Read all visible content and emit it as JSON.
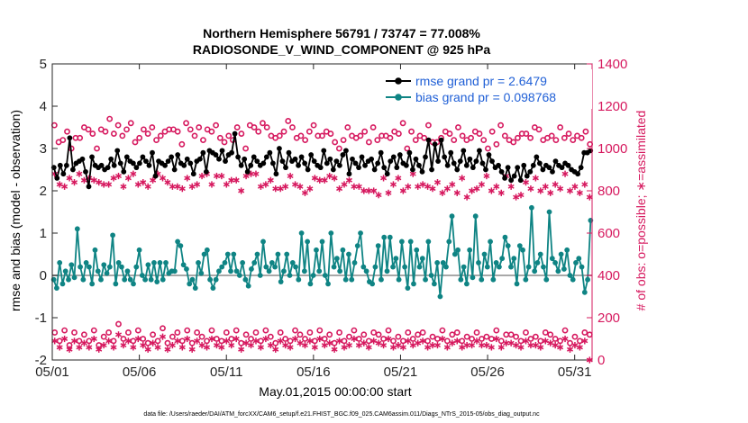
{
  "chart_data": {
    "type": "line",
    "title": "Northern Hemisphere 56791 / 73747 = 77.008%",
    "subtitle": "RADIOSONDE_V_WIND_COMPONENT @ 925 hPa",
    "xlabel": "May.01,2015 00:00:00 start",
    "ylabel": "rmse and bias (model - observation)",
    "y2label": "# of obs: o=possible; ∗=assimilated",
    "footnote": "data file: /Users/raeder/DAI/ATM_forcXX/CAM6_setup/f.e21.FHIST_BGC.f09_025.CAM6assim.011/Diags_NTrS_2015-05/obs_diag_output.nc",
    "x_range": [
      1,
      32
    ],
    "x_ticks": [
      1,
      6,
      11,
      16,
      21,
      26,
      31
    ],
    "x_tick_labels": [
      "05/01",
      "05/06",
      "05/11",
      "05/16",
      "05/21",
      "05/26",
      "05/31"
    ],
    "ylim": [
      -2,
      5
    ],
    "y_ticks": [
      -2,
      -1,
      0,
      1,
      2,
      3,
      4,
      5
    ],
    "y_tick_labels": [
      "-2",
      "-1",
      "0",
      "1",
      "2",
      "3",
      "4",
      "5"
    ],
    "y2lim": [
      0,
      1400
    ],
    "y2_ticks": [
      0,
      200,
      400,
      600,
      800,
      1000,
      1200,
      1400
    ],
    "y2_tick_labels": [
      "0",
      "200",
      "400",
      "600",
      "800",
      "1000",
      "1200",
      "1400"
    ],
    "legend_position": "top-right",
    "colors": {
      "rmse": "#000000",
      "bias": "#0f8484",
      "obs": "#d6185e",
      "zero_line": "#a8a8a8",
      "legend_text": "#1f5fd6"
    },
    "series": [
      {
        "name": "rmse grand pr = 2.6479",
        "axis": "left",
        "values": [
          2.55,
          2.3,
          2.6,
          2.4,
          2.6,
          3.25,
          2.5,
          2.65,
          2.7,
          2.75,
          2.45,
          2.1,
          2.8,
          2.6,
          2.55,
          2.6,
          2.5,
          2.55,
          2.75,
          2.6,
          2.95,
          2.65,
          2.45,
          2.8,
          2.7,
          2.65,
          2.55,
          2.65,
          2.8,
          2.7,
          2.6,
          2.9,
          2.35,
          2.7,
          2.65,
          2.6,
          2.7,
          2.8,
          2.5,
          2.85,
          2.65,
          2.6,
          2.75,
          2.65,
          2.4,
          2.7,
          2.75,
          2.9,
          2.45,
          2.95,
          2.9,
          2.85,
          2.75,
          2.95,
          2.7,
          2.85,
          2.9,
          3.35,
          2.8,
          2.6,
          2.75,
          2.45,
          2.6,
          2.8,
          2.7,
          2.6,
          2.65,
          2.8,
          2.9,
          2.65,
          2.4,
          3.0,
          2.7,
          2.55,
          2.9,
          2.7,
          2.75,
          2.6,
          2.8,
          2.65,
          2.5,
          2.85,
          2.7,
          2.6,
          2.55,
          2.95,
          2.65,
          2.75,
          2.5,
          2.7,
          2.6,
          2.85,
          2.95,
          2.4,
          2.75,
          2.65,
          2.55,
          2.8,
          2.6,
          2.7,
          2.75,
          2.5,
          2.65,
          2.9,
          2.55,
          2.4,
          2.7,
          2.8,
          2.55,
          2.85,
          2.65,
          2.6,
          2.9,
          2.5,
          2.75,
          2.6,
          2.45,
          2.8,
          3.2,
          2.5,
          3.1,
          2.7,
          3.2,
          2.8,
          2.6,
          2.9,
          2.65,
          2.5,
          2.7,
          2.95,
          2.6,
          2.75,
          2.55,
          2.7,
          2.95,
          2.65,
          2.5,
          2.85,
          2.7,
          2.55,
          2.6,
          2.45,
          2.3,
          2.55,
          2.25,
          2.35,
          2.55,
          2.25,
          2.6,
          2.35,
          2.45,
          2.6,
          2.8,
          2.65,
          2.5,
          2.6,
          2.55,
          2.45,
          2.7,
          2.6,
          2.55,
          2.65,
          2.6,
          2.5,
          2.45,
          2.4,
          2.55,
          2.9,
          2.9,
          2.95
        ]
      },
      {
        "name": "bias grand pr = 0.098768",
        "axis": "left",
        "values": [
          -0.1,
          -0.3,
          0.3,
          -0.2,
          0.1,
          -0.1,
          0.25,
          -0.05,
          1.1,
          0.2,
          -0.1,
          0.3,
          0.2,
          -0.2,
          0.6,
          0.1,
          -0.1,
          0.25,
          0.05,
          0.2,
          0.95,
          -0.2,
          0.3,
          0.2,
          -0.1,
          0.1,
          -0.1,
          -0.2,
          0.2,
          0.6,
          0.0,
          -0.1,
          0.25,
          -0.1,
          0.3,
          -0.15,
          0.3,
          -0.1,
          0.3,
          0.05,
          0.1,
          0.1,
          0.8,
          0.7,
          0.25,
          0.15,
          -0.2,
          -0.1,
          -0.3,
          0.3,
          0.05,
          0.5,
          0.6,
          -0.1,
          -0.3,
          -0.1,
          0.1,
          0.2,
          0.3,
          0.5,
          0.1,
          0.5,
          0.1,
          0.0,
          0.3,
          -0.1,
          -0.25,
          0.15,
          0.3,
          0.5,
          0.0,
          0.8,
          0.2,
          0.1,
          0.3,
          0.2,
          0.5,
          -0.15,
          0.1,
          0.5,
          0.0,
          0.3,
          0.2,
          -0.1,
          1.0,
          0.1,
          0.8,
          -0.2,
          0.0,
          0.6,
          0.1,
          0.8,
          0.0,
          -0.2,
          1.0,
          0.2,
          0.4,
          0.1,
          0.6,
          -0.1,
          0.5,
          -0.1,
          0.3,
          0.7,
          1.0,
          0.2,
          0.1,
          -0.15,
          -0.2,
          0.2,
          0.7,
          -0.1,
          0.9,
          0.1,
          0.9,
          0.2,
          0.4,
          -0.1,
          0.8,
          0.2,
          -0.3,
          0.8,
          -0.2,
          0.6,
          0.2,
          0.4,
          -0.1,
          0.8,
          0.0,
          -0.2,
          0.3,
          -0.5,
          0.3,
          0.2,
          0.8,
          1.4,
          0.5,
          0.6,
          -0.1,
          0.2,
          -0.2,
          0.6,
          -0.05,
          1.4,
          0.3,
          -0.1,
          0.5,
          0.2,
          0.8,
          -0.1,
          0.3,
          0.2,
          0.4,
          0.9,
          0.7,
          0.2,
          0.4,
          -0.2,
          0.7,
          0.6,
          -0.1,
          0.2,
          1.6,
          0.1,
          0.3,
          0.5,
          0.2,
          -0.1,
          1.5,
          0.4,
          0.3,
          0.1,
          0.5,
          0.15,
          0.6,
          0.0,
          -0.1,
          0.3,
          0.4,
          0.2,
          -0.4,
          -0.1,
          1.3
        ]
      },
      {
        "name": "obs possible (o)",
        "axis": "right",
        "marker": "o",
        "values": [
          1110,
          1030,
          1040,
          1080,
          1000,
          1050,
          1050,
          1100,
          1090,
          1070,
          1000,
          1090,
          1080,
          1140,
          1070,
          1110,
          1060,
          1090,
          1120,
          1030,
          1050,
          1090,
          1070,
          1100,
          1040,
          1060,
          1080,
          1090,
          1090,
          1080,
          1020,
          1120,
          1090,
          1060,
          1100,
          1040,
          1090,
          1080,
          1110,
          1050,
          1030,
          1060,
          1040,
          1100,
          1070,
          1000,
          1110,
          1100,
          1080,
          1120,
          1100,
          1060,
          1050,
          1060,
          1080,
          1130,
          1100,
          1050,
          1060,
          1040,
          1080,
          1110,
          1060,
          1060,
          1080,
          1070,
          1030,
          1000,
          1040,
          1100,
          1060,
          1050,
          1060,
          1080,
          1030,
          1100,
          1040,
          1060,
          1060,
          1050,
          1080,
          1070,
          1120,
          1000,
          1080,
          1040,
          1060,
          1050,
          1110,
          1030,
          1030,
          1050,
          1080,
          1070,
          1040,
          1100,
          1060,
          1040,
          1050,
          1080,
          1070,
          1040,
          1000,
          1080,
          1020,
          1110,
          1060,
          1040,
          1030,
          1050,
          1070,
          1070,
          1050,
          1100,
          1090,
          1040,
          1050,
          1060,
          1040,
          1100,
          1050,
          1070,
          1040,
          1060,
          1050,
          1080,
          1020
        ]
      },
      {
        "name": "obs assimilated (*)",
        "axis": "right",
        "marker": "*",
        "values": [
          880,
          830,
          820,
          860,
          840,
          880,
          850,
          860,
          850,
          840,
          830,
          830,
          860,
          870,
          820,
          860,
          880,
          830,
          840,
          820,
          850,
          880,
          860,
          840,
          820,
          820,
          810,
          860,
          820,
          830,
          870,
          880,
          830,
          870,
          870,
          830,
          850,
          850,
          800,
          870,
          880,
          880,
          820,
          830,
          850,
          810,
          810,
          820,
          870,
          830,
          820,
          790,
          810,
          860,
          850,
          850,
          870,
          860,
          810,
          830,
          850,
          820,
          820,
          800,
          800,
          800,
          780,
          860,
          790,
          830,
          860,
          800,
          820,
          880,
          820,
          830,
          820,
          810,
          840,
          790,
          810,
          830,
          790,
          860,
          770,
          800,
          810,
          830,
          870,
          800,
          820,
          790,
          870,
          820,
          770,
          780,
          840,
          810,
          860,
          800,
          820,
          790,
          830,
          810,
          880,
          800,
          820,
          790,
          830,
          770
        ]
      },
      {
        "name": "obs possible (o) lower",
        "axis": "right",
        "marker": "o",
        "values": [
          130,
          90,
          140,
          70,
          130,
          90,
          120,
          90,
          140,
          70,
          110,
          130,
          90,
          170,
          100,
          130,
          90,
          140,
          100,
          80,
          120,
          90,
          150,
          80,
          110,
          130,
          90,
          140,
          80,
          130,
          110,
          90,
          140,
          100,
          90,
          130,
          100,
          140,
          80,
          120,
          100,
          130,
          90,
          140,
          110,
          80,
          130,
          100,
          90,
          140,
          120,
          100,
          130,
          90,
          140,
          100,
          120,
          80,
          130,
          90,
          110,
          140,
          100,
          120,
          90,
          130,
          120,
          100,
          140,
          90,
          110,
          90,
          130,
          100,
          120,
          130,
          90,
          110,
          100,
          140,
          90,
          120,
          130,
          90,
          110,
          100,
          130,
          100,
          110,
          100,
          140,
          90,
          120,
          120,
          110,
          90,
          130,
          100,
          110,
          90,
          130,
          120,
          100,
          90,
          140,
          80,
          110,
          90,
          130,
          120
        ]
      },
      {
        "name": "obs assimilated (*) lower",
        "axis": "right",
        "marker": "*",
        "values": [
          90,
          60,
          100,
          50,
          90,
          60,
          80,
          60,
          100,
          50,
          70,
          90,
          60,
          120,
          70,
          90,
          60,
          100,
          70,
          50,
          80,
          60,
          110,
          50,
          70,
          90,
          60,
          100,
          50,
          90,
          70,
          60,
          100,
          70,
          60,
          90,
          70,
          100,
          50,
          80,
          70,
          90,
          60,
          100,
          70,
          50,
          90,
          70,
          60,
          100,
          80,
          70,
          90,
          60,
          100,
          70,
          80,
          50,
          90,
          60,
          70,
          100,
          70,
          80,
          60,
          90,
          80,
          70,
          100,
          60,
          70,
          60,
          90,
          70,
          80,
          90,
          60,
          70,
          70,
          100,
          60,
          80,
          90,
          60,
          70,
          70,
          90,
          70,
          70,
          60,
          100,
          60,
          80,
          80,
          70,
          60,
          90,
          70,
          70,
          60,
          90,
          80,
          70,
          60,
          100,
          50,
          70,
          60,
          90,
          0
        ]
      }
    ]
  }
}
